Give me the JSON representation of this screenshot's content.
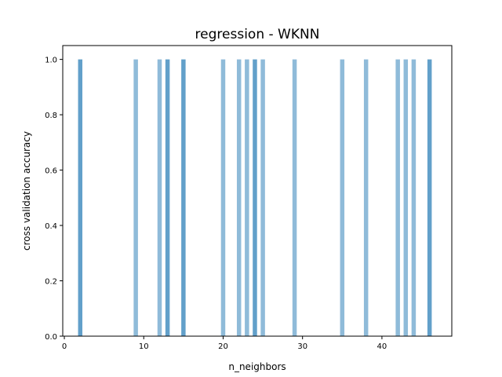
{
  "chart_data": {
    "type": "bar",
    "title": "regression - WKNN",
    "xlabel": "n_neighbors",
    "ylabel": "cross validation accuracy",
    "xlim": [
      -0.2,
      48.8
    ],
    "ylim": [
      0,
      1.05
    ],
    "x_ticks": [
      0,
      10,
      20,
      30,
      40
    ],
    "y_ticks": [
      0.0,
      0.2,
      0.4,
      0.6,
      0.8,
      1.0
    ],
    "x_tick_labels": [
      "0",
      "10",
      "20",
      "30",
      "40"
    ],
    "y_tick_labels": [
      "0.0",
      "0.2",
      "0.4",
      "0.6",
      "0.8",
      "1.0"
    ],
    "grid": false,
    "bar_color": "#1f77b4",
    "series": [
      {
        "values": [
          {
            "x": 2,
            "y": 1.0,
            "alpha": 0.7
          },
          {
            "x": 9,
            "y": 1.0,
            "alpha": 0.5
          },
          {
            "x": 12,
            "y": 1.0,
            "alpha": 0.5
          },
          {
            "x": 13,
            "y": 1.0,
            "alpha": 0.7
          },
          {
            "x": 15,
            "y": 1.0,
            "alpha": 0.7
          },
          {
            "x": 20,
            "y": 1.0,
            "alpha": 0.5
          },
          {
            "x": 22,
            "y": 1.0,
            "alpha": 0.5
          },
          {
            "x": 23,
            "y": 1.0,
            "alpha": 0.5
          },
          {
            "x": 24,
            "y": 1.0,
            "alpha": 0.7
          },
          {
            "x": 25,
            "y": 1.0,
            "alpha": 0.5
          },
          {
            "x": 29,
            "y": 1.0,
            "alpha": 0.5
          },
          {
            "x": 35,
            "y": 1.0,
            "alpha": 0.5
          },
          {
            "x": 38,
            "y": 1.0,
            "alpha": 0.5
          },
          {
            "x": 42,
            "y": 1.0,
            "alpha": 0.5
          },
          {
            "x": 43,
            "y": 1.0,
            "alpha": 0.5
          },
          {
            "x": 44,
            "y": 1.0,
            "alpha": 0.5
          },
          {
            "x": 46,
            "y": 1.0,
            "alpha": 0.7
          }
        ]
      }
    ]
  }
}
